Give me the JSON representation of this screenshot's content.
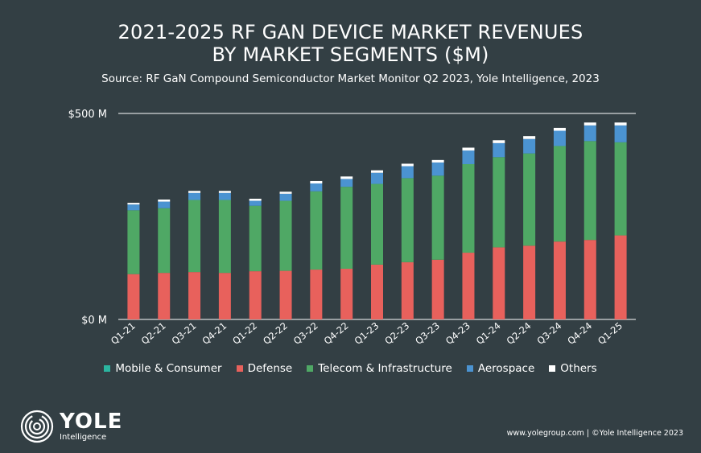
{
  "title_line1": "2021-2025 RF GAN DEVICE MARKET REVENUES",
  "title_line2": "BY MARKET SEGMENTS ($M)",
  "subtitle": "Source: RF GaN Compound Semiconductor Market Monitor Q2 2023, Yole Intelligence, 2023",
  "logo": {
    "name": "YOLE",
    "sub": "Intelligence"
  },
  "footer": "www.yolegroup.com | ©Yole Intelligence 2023",
  "colors": {
    "background": "#333f44",
    "Mobile & Consumer": "#2bb5a0",
    "Defense": "#e8615c",
    "Telecom & Infrastructure": "#4fa865",
    "Aerospace": "#4b93d1",
    "Others": "#ffffff"
  },
  "chart_data": {
    "type": "bar",
    "stacked": true,
    "title": "2021-2025 RF GAN DEVICE MARKET REVENUES BY MARKET SEGMENTS ($M)",
    "categories": [
      "Q1-21",
      "Q2-21",
      "Q3-21",
      "Q4-21",
      "Q1-22",
      "Q2-22",
      "Q3-22",
      "Q4-22",
      "Q1-23",
      "Q2-23",
      "Q3-23",
      "Q4-23",
      "Q1-24",
      "Q2-24",
      "Q3-24",
      "Q4-24",
      "Q1-25"
    ],
    "ylim": [
      0,
      500
    ],
    "yticks": [
      {
        "value": 0,
        "label": "$0 M"
      },
      {
        "value": 500,
        "label": "$500 M"
      }
    ],
    "legend_position": "bottom",
    "series": [
      {
        "name": "Mobile & Consumer",
        "values": [
          0,
          0,
          0,
          0,
          0,
          0,
          0,
          0,
          0,
          0,
          0,
          0,
          0,
          0,
          0,
          0,
          0
        ]
      },
      {
        "name": "Defense",
        "values": [
          110,
          113,
          115,
          113,
          117,
          118,
          121,
          123,
          133,
          139,
          145,
          162,
          175,
          179,
          189,
          193,
          204
        ]
      },
      {
        "name": "Telecom & Infrastructure",
        "values": [
          155,
          157,
          175,
          177,
          159,
          170,
          190,
          199,
          196,
          204,
          204,
          215,
          219,
          224,
          232,
          240,
          226
        ]
      },
      {
        "name": "Aerospace",
        "values": [
          14,
          16,
          17,
          17,
          12,
          17,
          19,
          19,
          27,
          29,
          32,
          33,
          34,
          35,
          37,
          38,
          41
        ]
      },
      {
        "name": "Others",
        "values": [
          4,
          5,
          5,
          5,
          5,
          5,
          6,
          6,
          6,
          6,
          6,
          7,
          7,
          7,
          7,
          7,
          7
        ]
      }
    ]
  }
}
